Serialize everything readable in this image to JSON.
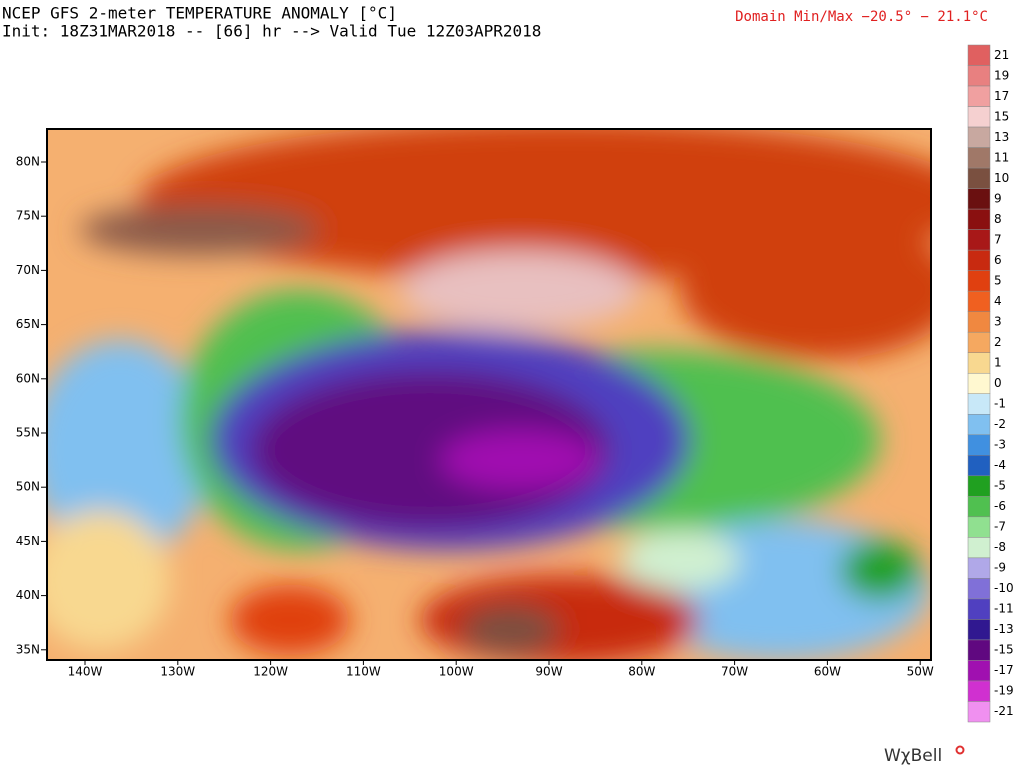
{
  "header": {
    "title": "NCEP GFS 2-meter TEMPERATURE ANOMALY [°C]",
    "init": "Init: 18Z31MAR2018 -- [66] hr --> Valid Tue 12Z03APR2018",
    "domain": "Domain Min/Max −20.5° − 21.1°C"
  },
  "map": {
    "lat_labels": [
      "80N",
      "75N",
      "70N",
      "65N",
      "60N",
      "55N",
      "50N",
      "45N",
      "40N",
      "35N"
    ],
    "lon_labels": [
      "140W",
      "130W",
      "120W",
      "110W",
      "100W",
      "90W",
      "80W",
      "70W",
      "60W",
      "50W"
    ]
  },
  "colorbar": {
    "labels": [
      "21",
      "19",
      "17",
      "15",
      "13",
      "11",
      "10",
      "9",
      "8",
      "7",
      "6",
      "5",
      "4",
      "3",
      "2",
      "1",
      "0",
      "-1",
      "-2",
      "-3",
      "-4",
      "-5",
      "-6",
      "-7",
      "-8",
      "-9",
      "-10",
      "-11",
      "-13",
      "-15",
      "-17",
      "-19",
      "-21"
    ],
    "colors": [
      "#e06060",
      "#e88080",
      "#f0a0a0",
      "#f5d0d0",
      "#c8a8a0",
      "#a07868",
      "#7a5040",
      "#6a1010",
      "#8a1010",
      "#a81818",
      "#c82a10",
      "#e04010",
      "#f06020",
      "#f08840",
      "#f5a860",
      "#f8d890",
      "#fff8d0",
      "#c8e8f8",
      "#80c0f0",
      "#4090e0",
      "#2060c0",
      "#20a020",
      "#50c050",
      "#90e090",
      "#d0f0d0",
      "#b0a8e8",
      "#8070d8",
      "#5040c0",
      "#301890",
      "#600880",
      "#a010b0",
      "#d030d0",
      "#f090f0"
    ]
  },
  "brand": "WχBell"
}
